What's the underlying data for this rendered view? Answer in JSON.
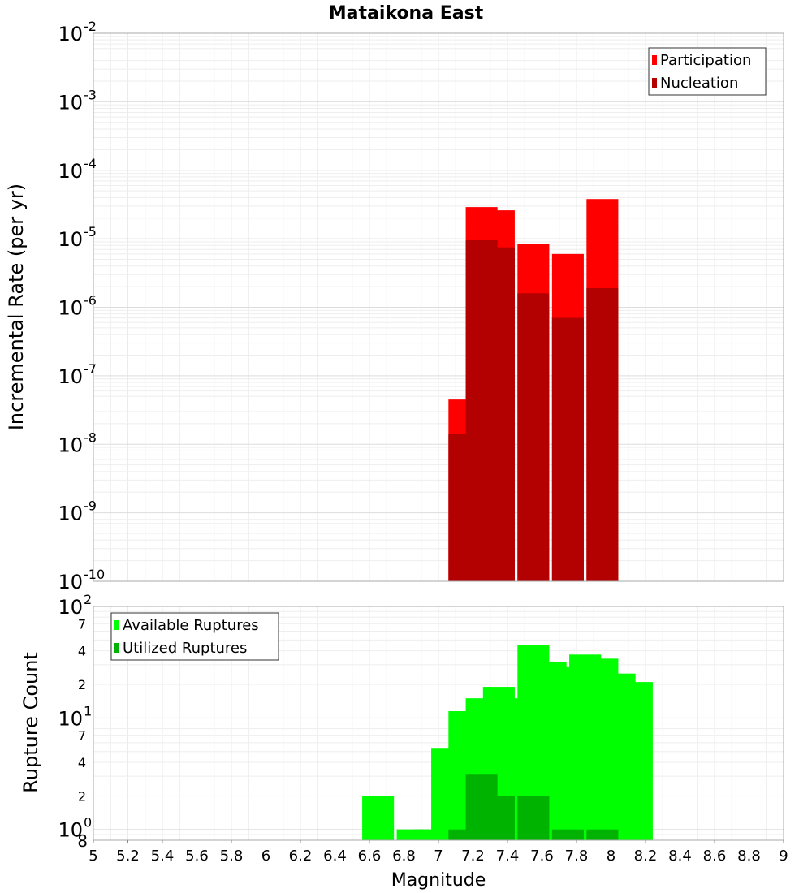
{
  "chart_data": {
    "title": "Mataikona East",
    "xlabel": "Magnitude",
    "xlim": [
      5,
      9
    ],
    "x_ticks": [
      "5",
      "5.2",
      "5.4",
      "5.6",
      "5.8",
      "6",
      "6.2",
      "6.4",
      "6.6",
      "6.8",
      "7",
      "7.2",
      "7.4",
      "7.6",
      "7.8",
      "8",
      "8.2",
      "8.4",
      "8.6",
      "8.8",
      "9"
    ],
    "charts": [
      {
        "type": "bar",
        "ylabel": "Incremental Rate (per yr)",
        "yscale": "log",
        "ylim": [
          1e-10,
          0.01
        ],
        "grid": true,
        "legend_position": "top-right",
        "y_major_ticks": [
          {
            "base": "10",
            "exp": "-10"
          },
          {
            "base": "10",
            "exp": "-9"
          },
          {
            "base": "10",
            "exp": "-8"
          },
          {
            "base": "10",
            "exp": "-7"
          },
          {
            "base": "10",
            "exp": "-6"
          },
          {
            "base": "10",
            "exp": "-5"
          },
          {
            "base": "10",
            "exp": "-4"
          },
          {
            "base": "10",
            "exp": "-3"
          },
          {
            "base": "10",
            "exp": "-2"
          }
        ],
        "series": [
          {
            "name": "Participation",
            "color": "#ff0000",
            "points": [
              [
                7.15,
                4.5e-08
              ],
              [
                7.25,
                2.9e-05
              ],
              [
                7.35,
                2.6e-05
              ],
              [
                7.55,
                8.5e-06
              ],
              [
                7.75,
                6e-06
              ],
              [
                7.95,
                3.8e-05
              ]
            ]
          },
          {
            "name": "Nucleation",
            "color": "#b30000",
            "points": [
              [
                7.15,
                1.4e-08
              ],
              [
                7.25,
                9.5e-06
              ],
              [
                7.35,
                7.5e-06
              ],
              [
                7.55,
                1.6e-06
              ],
              [
                7.75,
                7e-07
              ],
              [
                7.95,
                1.9e-06
              ]
            ]
          }
        ]
      },
      {
        "type": "bar",
        "ylabel": "Rupture Count",
        "yscale": "log",
        "ylim": [
          0.8,
          100
        ],
        "grid": true,
        "legend_position": "top-left",
        "y_major_ticks": [
          {
            "base": "10",
            "exp": "0"
          },
          {
            "base": "10",
            "exp": "1"
          },
          {
            "base": "10",
            "exp": "2"
          }
        ],
        "y_minor_labels": [
          {
            "value": 2,
            "label": "2"
          },
          {
            "value": 4,
            "label": "4"
          },
          {
            "value": 7,
            "label": "7"
          },
          {
            "value": 20,
            "label": "2"
          },
          {
            "value": 40,
            "label": "4"
          },
          {
            "value": 70,
            "label": "7"
          }
        ],
        "y_bottom_label": "8",
        "series": [
          {
            "name": "Available Ruptures",
            "color": "#00ff00",
            "points": [
              [
                6.65,
                2
              ],
              [
                6.85,
                1
              ],
              [
                6.95,
                1
              ],
              [
                7.05,
                5.3
              ],
              [
                7.15,
                11.5
              ],
              [
                7.25,
                15
              ],
              [
                7.35,
                19
              ],
              [
                7.45,
                15
              ],
              [
                7.55,
                45
              ],
              [
                7.65,
                32
              ],
              [
                7.75,
                29
              ],
              [
                7.85,
                37
              ],
              [
                7.95,
                34
              ],
              [
                8.05,
                25
              ],
              [
                8.15,
                21
              ]
            ]
          },
          {
            "name": "Utilized Ruptures",
            "color": "#00b300",
            "points": [
              [
                7.15,
                1
              ],
              [
                7.25,
                3.1
              ],
              [
                7.35,
                2
              ],
              [
                7.55,
                2
              ],
              [
                7.75,
                1
              ],
              [
                7.95,
                1
              ]
            ]
          }
        ]
      }
    ]
  }
}
